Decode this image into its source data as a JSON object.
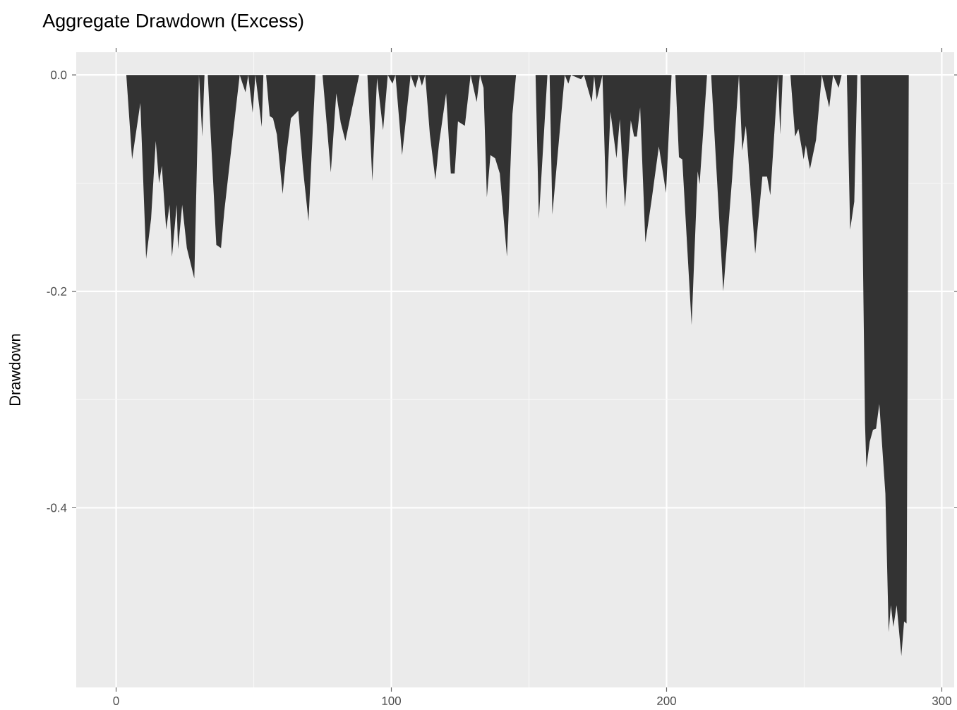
{
  "chart_data": {
    "type": "area",
    "title": "Aggregate Drawdown (Excess)",
    "ylabel": "Drawdown",
    "color": "#333333",
    "grid": true,
    "xlim": [
      -14.5,
      304.5
    ],
    "ylim": [
      -0.566,
      0.021
    ],
    "xticks": [
      0,
      100,
      200,
      300
    ],
    "yticks": [
      {
        "value": -0.4,
        "label": "-0.4"
      },
      {
        "value": -0.2,
        "label": "-0.2"
      },
      {
        "value": 0,
        "label": "0.0"
      }
    ],
    "x": [
      1,
      3.7,
      5.8,
      8.8,
      10.9,
      12.7,
      14.4,
      15.6,
      16.6,
      18.2,
      19.4,
      20.3,
      22,
      22.5,
      24,
      25.7,
      28.4,
      30.1,
      31.3,
      32.1,
      33.3,
      36.4,
      38.1,
      39.3,
      43.5,
      44.9,
      47,
      48,
      49.6,
      50.6,
      52.9,
      53.5,
      54.5,
      55.8,
      57,
      58.4,
      60.5,
      61.8,
      63.5,
      66.2,
      67.9,
      69.9,
      72.4,
      75,
      78,
      80,
      81.6,
      83.3,
      85.8,
      88.3,
      91.3,
      93.1,
      94.8,
      97,
      98.7,
      100.4,
      101.5,
      103.9,
      107,
      108.7,
      110,
      111.1,
      112.3,
      114,
      116,
      117.3,
      119.9,
      121.6,
      123,
      124.2,
      126.7,
      128.8,
      131,
      132.2,
      133.5,
      134.7,
      136,
      137.7,
      139.4,
      142,
      144,
      145.3,
      152.4,
      153.6,
      156.7,
      157.5,
      158.5,
      163,
      164.3,
      165.3,
      168.9,
      170,
      172.8,
      173.7,
      174.6,
      176.7,
      178.1,
      179.6,
      181.8,
      183,
      184.9,
      187,
      188.2,
      189.2,
      190.4,
      192.3,
      194.7,
      197.2,
      199.8,
      201.8,
      203.2,
      204.5,
      205.7,
      209.1,
      211.3,
      212,
      214.7,
      216.2,
      220.6,
      223.8,
      226.3,
      227.5,
      228.8,
      229.7,
      232.2,
      234.8,
      236.5,
      237.7,
      240.5,
      241.3,
      242.2,
      245,
      246.7,
      247.9,
      249.8,
      250.6,
      252.1,
      254.3,
      256.4,
      259.1,
      260.5,
      262.5,
      263.6,
      265.5,
      266.7,
      268.2,
      269.3,
      270.5,
      272.1,
      272.6,
      273.8,
      275,
      276.1,
      277.3,
      279.5,
      280.7,
      281.5,
      282.4,
      283.6,
      285.3,
      286.3,
      287.2,
      288
    ],
    "values": [
      0,
      0,
      -0.078,
      -0.026,
      -0.17,
      -0.133,
      -0.061,
      -0.1,
      -0.084,
      -0.143,
      -0.12,
      -0.168,
      -0.12,
      -0.161,
      -0.12,
      -0.16,
      -0.188,
      0,
      -0.057,
      0,
      0,
      -0.157,
      -0.16,
      -0.126,
      -0.031,
      0,
      -0.016,
      0,
      -0.035,
      0,
      -0.048,
      0,
      0,
      -0.038,
      -0.04,
      -0.055,
      -0.11,
      -0.075,
      -0.04,
      -0.033,
      -0.087,
      -0.135,
      0,
      0,
      -0.09,
      -0.017,
      -0.044,
      -0.061,
      -0.03,
      0,
      0,
      -0.098,
      -0.003,
      -0.051,
      0,
      -0.008,
      0,
      -0.074,
      0,
      -0.012,
      0,
      -0.01,
      0,
      -0.055,
      -0.097,
      -0.064,
      -0.017,
      -0.091,
      -0.091,
      -0.043,
      -0.047,
      0,
      -0.025,
      0,
      -0.012,
      -0.113,
      -0.074,
      -0.077,
      -0.091,
      -0.168,
      -0.036,
      0,
      0,
      -0.133,
      0,
      0,
      -0.129,
      0,
      -0.008,
      0,
      -0.004,
      0,
      -0.025,
      -0.001,
      -0.023,
      0,
      -0.124,
      -0.034,
      -0.077,
      -0.041,
      -0.122,
      -0.042,
      -0.057,
      -0.057,
      -0.03,
      -0.155,
      -0.113,
      -0.066,
      -0.109,
      0,
      0,
      -0.076,
      -0.078,
      -0.231,
      -0.089,
      -0.101,
      0,
      0,
      -0.2,
      -0.096,
      0,
      -0.07,
      -0.047,
      -0.077,
      -0.165,
      -0.094,
      -0.094,
      -0.111,
      0,
      -0.055,
      0,
      0,
      -0.057,
      -0.05,
      -0.078,
      -0.065,
      -0.087,
      -0.06,
      0,
      -0.03,
      0,
      -0.012,
      0,
      0,
      -0.143,
      -0.117,
      0,
      0,
      -0.322,
      -0.363,
      -0.339,
      -0.328,
      -0.327,
      -0.304,
      -0.387,
      -0.515,
      -0.49,
      -0.51,
      -0.49,
      -0.537,
      -0.505,
      -0.507,
      0
    ]
  }
}
